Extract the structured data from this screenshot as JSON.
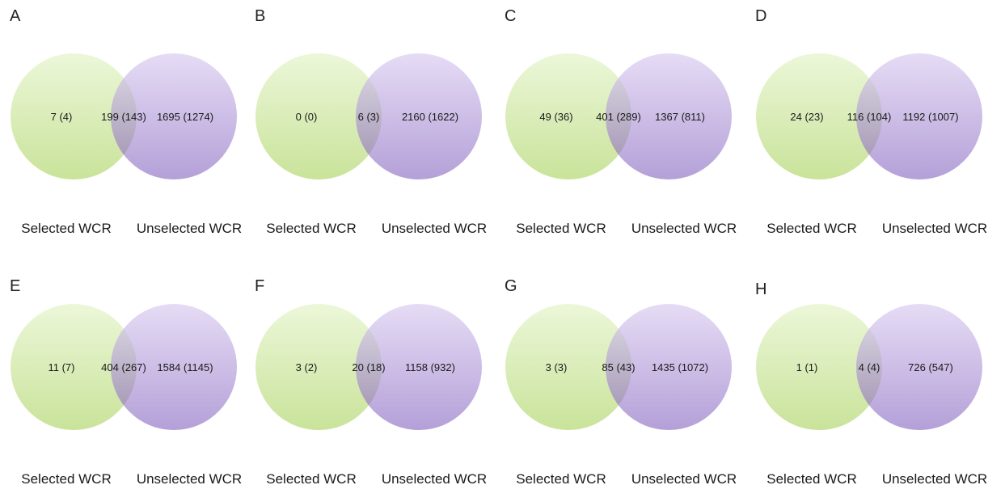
{
  "colors": {
    "set_a_top": "#ecf7d9",
    "set_a_bottom": "#c9e39a",
    "set_b_top": "#e6dcf5",
    "set_b_bottom": "#b4a0d8",
    "overlap_top": "#d3cedd",
    "overlap_bottom": "#a99cb8"
  },
  "set_labels": {
    "left": "Selected WCR",
    "right": "Unselected WCR"
  },
  "panels": [
    {
      "letter": "A",
      "left_only": "7 (4)",
      "both": "199 (143)",
      "right_only": "1695 (1274)"
    },
    {
      "letter": "B",
      "left_only": "0 (0)",
      "both": "6 (3)",
      "right_only": "2160 (1622)"
    },
    {
      "letter": "C",
      "left_only": "49 (36)",
      "both": "401 (289)",
      "right_only": "1367 (811)"
    },
    {
      "letter": "D",
      "left_only": "24 (23)",
      "both": "116 (104)",
      "right_only": "1192 (1007)"
    },
    {
      "letter": "E",
      "left_only": "11 (7)",
      "both": "404 (267)",
      "right_only": "1584 (1145)"
    },
    {
      "letter": "F",
      "left_only": "3 (2)",
      "both": "20 (18)",
      "right_only": "1158 (932)"
    },
    {
      "letter": "G",
      "left_only": "3 (3)",
      "both": "85 (43)",
      "right_only": "1435 (1072)"
    },
    {
      "letter": "H",
      "left_only": "1 (1)",
      "both": "4 (4)",
      "right_only": "726 (547)"
    }
  ]
}
